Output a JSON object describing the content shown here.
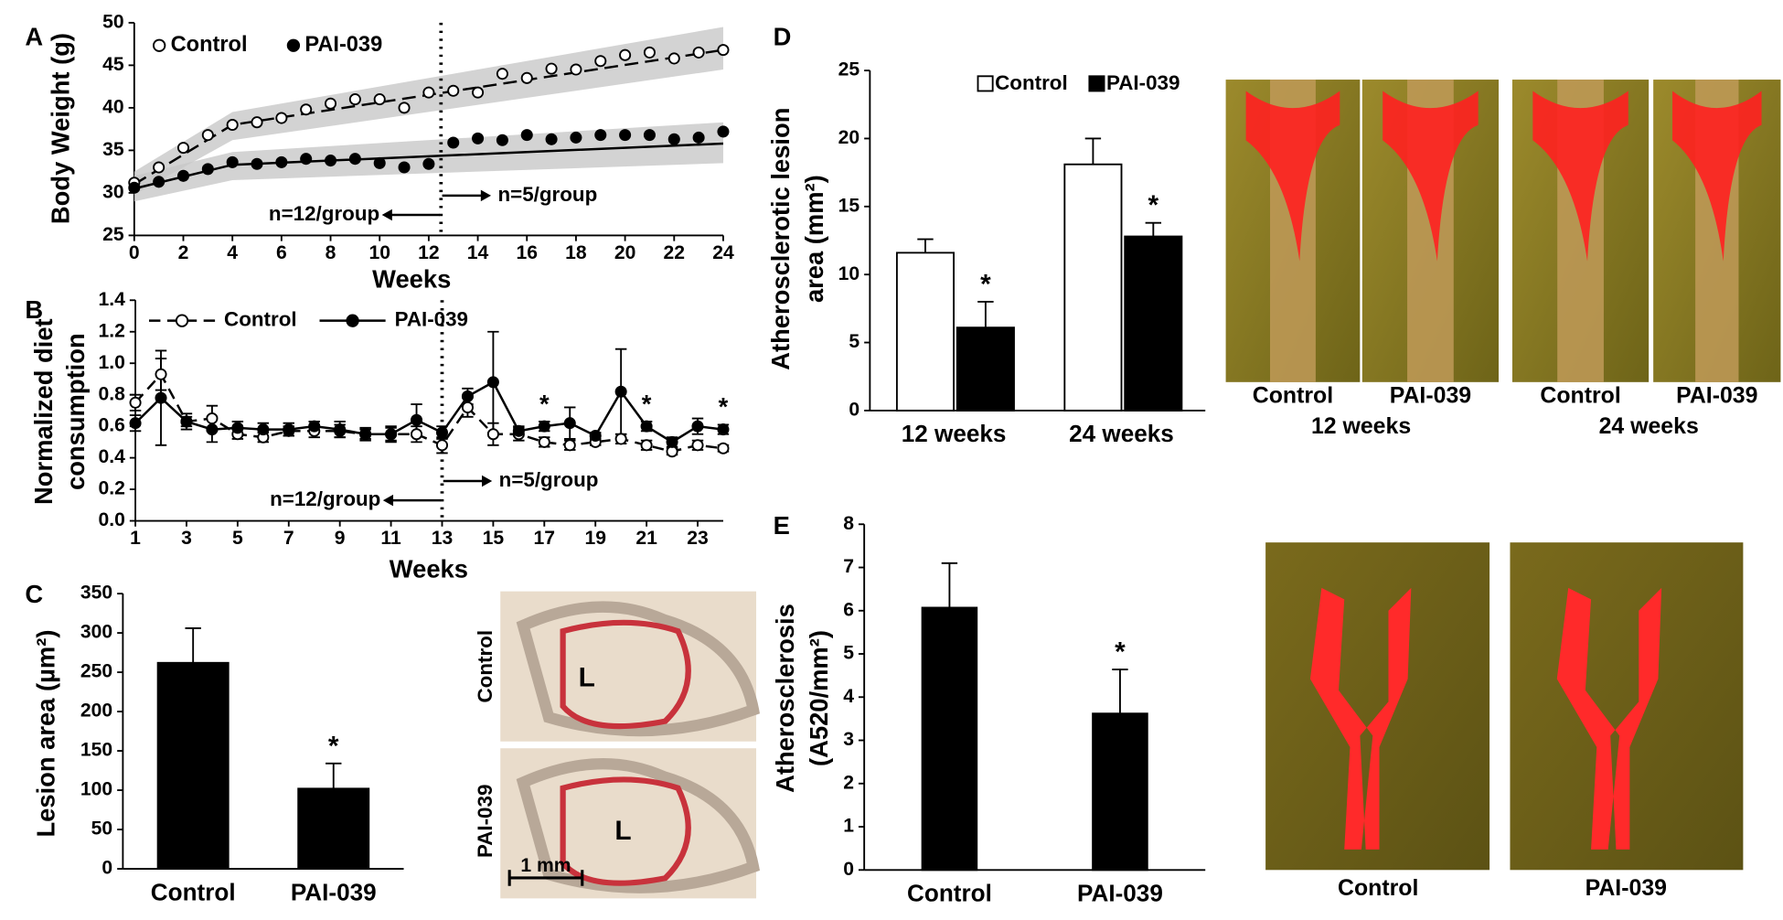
{
  "chart_data": [
    {
      "type": "scatter",
      "panel": "A",
      "xlabel": "Weeks",
      "ylabel": "Body Weight (g)",
      "xlim": [
        0,
        24
      ],
      "ylim": [
        25,
        50
      ],
      "xticks": [
        0,
        2,
        4,
        6,
        8,
        10,
        12,
        14,
        16,
        18,
        20,
        22,
        24
      ],
      "yticks": [
        25,
        30,
        35,
        40,
        45,
        50
      ],
      "x": [
        0,
        1,
        2,
        3,
        4,
        5,
        6,
        7,
        8,
        9,
        10,
        11,
        12,
        13,
        14,
        15,
        16,
        17,
        18,
        19,
        20,
        21,
        22,
        23,
        24
      ],
      "divider": 12.5,
      "annotations": [
        "n=12/group",
        "n=5/group"
      ],
      "legend": "upper left",
      "series": [
        {
          "name": "Control",
          "color": "#ffffff",
          "dash": true,
          "values": [
            31.2,
            33,
            35.3,
            36.8,
            38,
            38.3,
            38.8,
            39.8,
            40.5,
            41,
            41,
            40,
            41.8,
            42,
            41.8,
            44,
            43.5,
            44.6,
            44.5,
            45.5,
            46.2,
            46.5,
            45.8,
            46.5,
            46.8
          ],
          "fit_x": [
            0,
            4,
            24
          ],
          "fit": [
            31,
            38,
            46.8
          ],
          "band_lower": [
            29.8,
            36.2,
            44.5
          ],
          "band_upper": [
            32.5,
            39.5,
            49.5
          ]
        },
        {
          "name": "PAI-039",
          "color": "#000000",
          "dash": false,
          "values": [
            30.6,
            31.3,
            32,
            32.8,
            33.6,
            33.4,
            33.6,
            34,
            33.8,
            34,
            33.5,
            33,
            33.4,
            35.9,
            36.4,
            36.2,
            36.8,
            36.3,
            36.5,
            36.8,
            36.8,
            36.8,
            36.3,
            36.5,
            37.2
          ],
          "fit_x": [
            0,
            4,
            24
          ],
          "fit": [
            30.5,
            33.3,
            35.8
          ],
          "band_lower": [
            29,
            31.5,
            33.5
          ],
          "band_upper": [
            32,
            34.8,
            38.3
          ]
        }
      ]
    },
    {
      "type": "line",
      "panel": "B",
      "xlabel": "Weeks",
      "ylabel": [
        "Normalized diet",
        "consumption"
      ],
      "xlim": [
        1,
        24
      ],
      "ylim": [
        0,
        1.4
      ],
      "xticks": [
        1,
        3,
        5,
        7,
        9,
        11,
        13,
        15,
        17,
        19,
        21,
        23
      ],
      "yticks": [
        {
          "value": 0,
          "label": "0.0"
        },
        0.2,
        0.4,
        0.6,
        0.8,
        {
          "value": 1,
          "label": "1.0"
        },
        1.2,
        1.4
      ],
      "x": [
        1,
        2,
        3,
        4,
        5,
        6,
        7,
        8,
        9,
        10,
        11,
        12,
        13,
        14,
        15,
        16,
        17,
        18,
        19,
        20,
        21,
        22,
        23,
        24
      ],
      "divider": 13,
      "annotations": [
        "n=12/group",
        "n=5/group"
      ],
      "legend": "upper left",
      "significance_label": "*",
      "significant_x": [
        17,
        21,
        24
      ],
      "series": [
        {
          "name": "Control",
          "color": "#ffffff",
          "dash": true,
          "values": [
            0.75,
            0.93,
            0.63,
            0.65,
            0.55,
            0.53,
            0.57,
            0.57,
            0.57,
            0.55,
            0.55,
            0.55,
            0.48,
            0.72,
            0.55,
            0.55,
            0.5,
            0.48,
            0.5,
            0.52,
            0.48,
            0.44,
            0.48,
            0.46
          ],
          "errors": [
            0.05,
            0.1,
            0.03,
            0.08,
            0.03,
            0.03,
            0.03,
            0.04,
            0.04,
            0.03,
            0.04,
            0.05,
            0.05,
            0.06,
            0.07,
            0.04,
            0.03,
            0.03,
            0.02,
            0.03,
            0.03,
            0.02,
            0.03,
            0.02
          ]
        },
        {
          "name": "PAI-039",
          "color": "#000000",
          "dash": false,
          "values": [
            0.62,
            0.78,
            0.63,
            0.58,
            0.59,
            0.58,
            0.58,
            0.6,
            0.58,
            0.55,
            0.55,
            0.64,
            0.56,
            0.79,
            0.88,
            0.57,
            0.6,
            0.62,
            0.54,
            0.82,
            0.6,
            0.5,
            0.6,
            0.58
          ],
          "errors": [
            0.05,
            0.3,
            0.05,
            0.08,
            0.04,
            0.04,
            0.04,
            0.03,
            0.05,
            0.04,
            0.05,
            0.1,
            0.04,
            0.05,
            0.32,
            0.03,
            0.03,
            0.1,
            0.02,
            0.27,
            0.03,
            0.03,
            0.05,
            0.03
          ]
        }
      ]
    },
    {
      "type": "bar",
      "panel": "C",
      "ylabel": "Lesion area (µm²)",
      "categories": [
        "Control",
        "PAI-039"
      ],
      "values": [
        262,
        102
      ],
      "errors": [
        44,
        32
      ],
      "color": "#000000",
      "ylim": [
        0,
        350
      ],
      "yticks": [
        0,
        50,
        100,
        150,
        200,
        250,
        300,
        350
      ],
      "significant": [
        false,
        true
      ],
      "significance_label": "*",
      "image_labels": [
        "Control",
        "PAI-039"
      ],
      "image_marks": [
        "L",
        "L"
      ],
      "scale_bar": "1 mm"
    },
    {
      "type": "bar",
      "panel": "D",
      "ylabel": [
        "Atherosclerotic lesion",
        "area (mm²)"
      ],
      "categories": [
        "12 weeks",
        "24 weeks"
      ],
      "legend": "upper left",
      "series": [
        {
          "name": "Control",
          "color": "#ffffff",
          "values": [
            11.6,
            18.1
          ],
          "errors": [
            1.0,
            1.9
          ],
          "significant": [
            false,
            false
          ]
        },
        {
          "name": "PAI-039",
          "color": "#000000",
          "values": [
            6.1,
            12.8
          ],
          "errors": [
            1.9,
            1.0
          ],
          "significant": [
            true,
            true
          ]
        }
      ],
      "ylim": [
        0,
        25
      ],
      "yticks": [
        0,
        5,
        10,
        15,
        20,
        25
      ],
      "significance_label": "*",
      "image_labels": [
        "Control",
        "PAI-039",
        "Control",
        "PAI-039"
      ],
      "image_groups": [
        "12 weeks",
        "24 weeks"
      ]
    },
    {
      "type": "bar",
      "panel": "E",
      "ylabel": [
        "Atherosclerosis",
        "(A520/mm²)"
      ],
      "categories": [
        "Control",
        "PAI-039"
      ],
      "values": [
        6.07,
        3.62
      ],
      "errors": [
        1.03,
        1.02
      ],
      "color": "#000000",
      "ylim": [
        0,
        8
      ],
      "yticks": [
        0,
        1,
        2,
        3,
        4,
        5,
        6,
        7,
        8
      ],
      "significant": [
        false,
        true
      ],
      "significance_label": "*",
      "image_labels": [
        "Control",
        "PAI-039"
      ]
    }
  ]
}
